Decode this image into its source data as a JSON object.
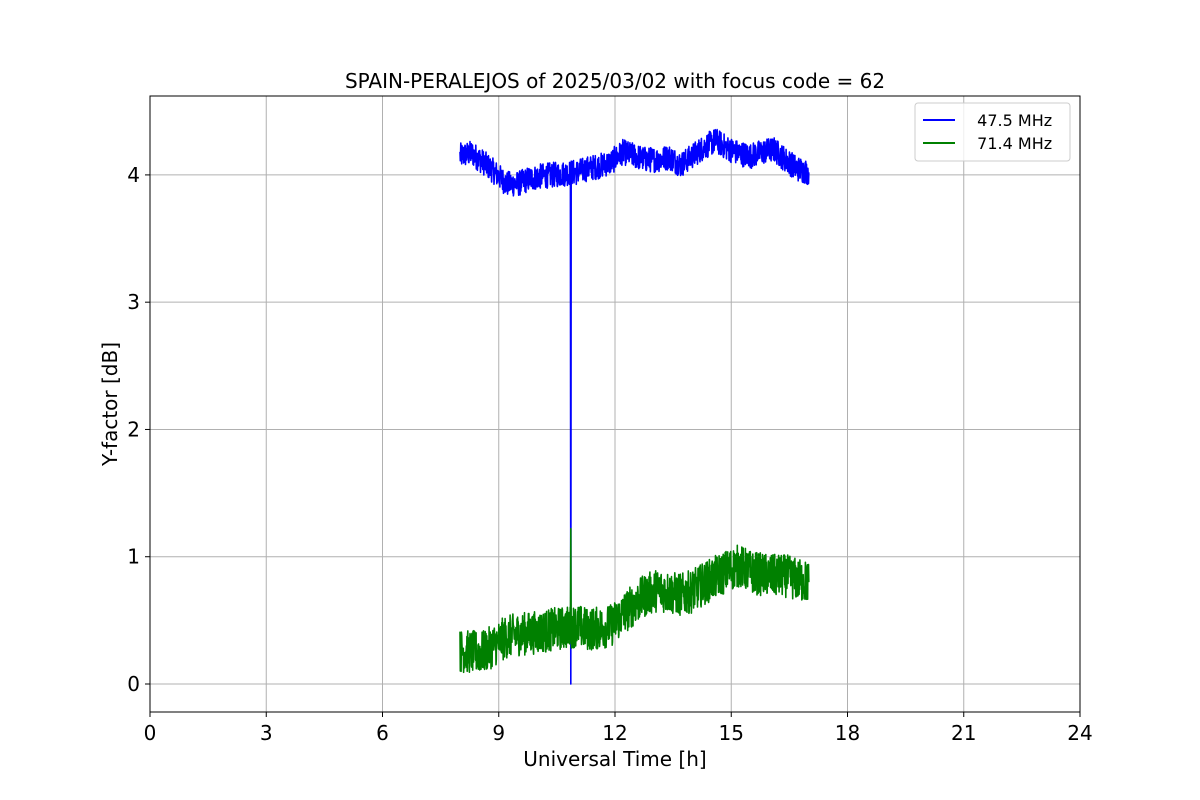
{
  "chart_data": {
    "type": "line",
    "title": "SPAIN-PERALEJOS of 2025/03/02 with focus code = 62",
    "xlabel": "Universal Time [h]",
    "ylabel": "Y-factor [dB]",
    "xlim": [
      0,
      24
    ],
    "ylim": [
      -0.22,
      4.62
    ],
    "xticks": [
      0,
      3,
      6,
      9,
      12,
      15,
      18,
      21,
      24
    ],
    "yticks": [
      0,
      1,
      2,
      3,
      4
    ],
    "grid": true,
    "legend": "top-right",
    "series": [
      {
        "name": "  47.5 MHz",
        "color": "#0000ff",
        "noise": 0.1,
        "x": [
          8.0,
          8.3,
          8.6,
          8.9,
          9.2,
          9.5,
          9.8,
          10.1,
          10.4,
          10.7,
          10.85,
          10.86,
          10.87,
          11.0,
          11.3,
          11.6,
          11.9,
          12.2,
          12.5,
          12.8,
          13.1,
          13.4,
          13.7,
          14.0,
          14.3,
          14.6,
          14.9,
          15.2,
          15.5,
          15.8,
          16.1,
          16.4,
          16.7,
          17.0
        ],
        "y": [
          4.15,
          4.17,
          4.1,
          4.02,
          3.93,
          3.93,
          3.97,
          3.99,
          4.0,
          4.01,
          4.02,
          0.0,
          4.02,
          4.02,
          4.05,
          4.07,
          4.1,
          4.18,
          4.15,
          4.12,
          4.12,
          4.14,
          4.08,
          4.15,
          4.22,
          4.27,
          4.21,
          4.17,
          4.15,
          4.18,
          4.2,
          4.12,
          4.05,
          4.02
        ]
      },
      {
        "name": "  71.4 MHz",
        "color": "#008000",
        "noise": 0.17,
        "x": [
          8.0,
          8.3,
          8.6,
          8.9,
          9.2,
          9.5,
          9.8,
          10.1,
          10.4,
          10.7,
          10.85,
          10.86,
          10.87,
          11.0,
          11.3,
          11.6,
          11.9,
          12.2,
          12.5,
          12.8,
          13.1,
          13.4,
          13.7,
          14.0,
          14.3,
          14.6,
          14.9,
          15.2,
          15.5,
          15.8,
          16.1,
          16.4,
          16.7,
          17.0
        ],
        "y": [
          0.26,
          0.25,
          0.25,
          0.31,
          0.37,
          0.39,
          0.4,
          0.41,
          0.43,
          0.44,
          0.45,
          1.22,
          0.45,
          0.46,
          0.43,
          0.44,
          0.46,
          0.55,
          0.63,
          0.7,
          0.74,
          0.72,
          0.7,
          0.73,
          0.79,
          0.84,
          0.89,
          0.93,
          0.88,
          0.86,
          0.85,
          0.85,
          0.82,
          0.8
        ]
      }
    ]
  }
}
